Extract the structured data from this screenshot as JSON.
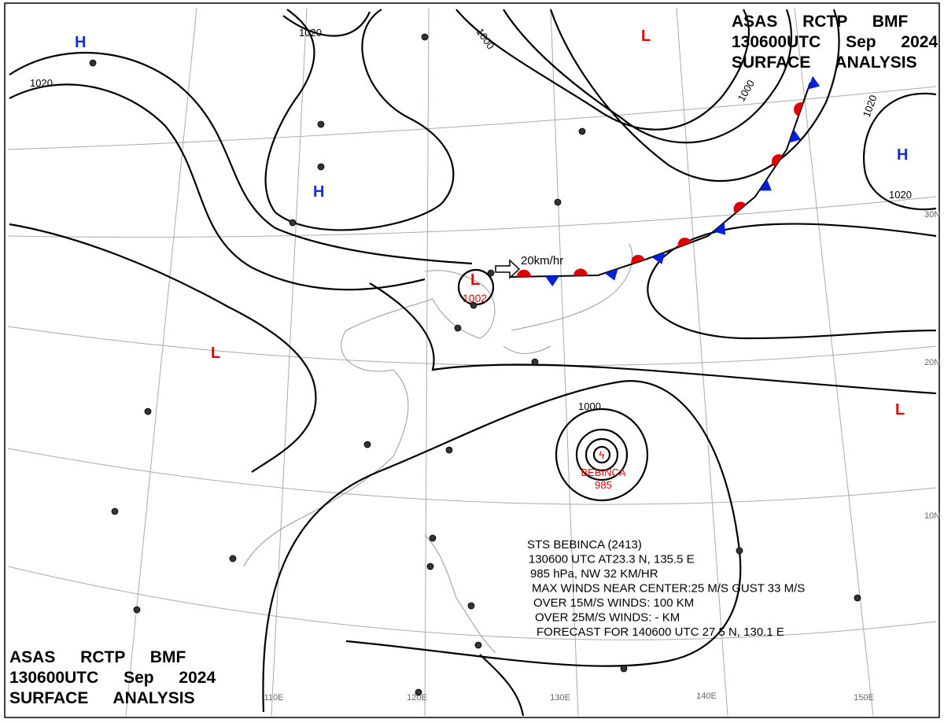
{
  "header": {
    "line1": "ASAS RCTP BMF",
    "line2": "130600UTC Sep 2024",
    "line3": "SURFACE ANALYSIS"
  },
  "isobar_labels": [
    1020,
    1020,
    1000,
    1000,
    1020,
    1020,
    1000
  ],
  "pressure_centers": [
    "H",
    "H",
    "H",
    "L",
    "L",
    "L",
    "L"
  ],
  "low_center_pressure": 1002,
  "front_motion": "20km/hr",
  "typhoon": {
    "name": "BEBINCA",
    "pressure": 985
  },
  "typhoon_info": [
    "STS BEBINCA (2413)",
    "130600 UTC AT23.3 N, 135.5 E",
    "985 hPa, NW 32 KM/HR",
    "MAX WINDS NEAR CENTER:25 M/S GUST 33 M/S",
    "OVER 15M/S WINDS: 100 KM",
    "OVER 25M/S WINDS: - KM",
    "FORECAST FOR 140600 UTC 27.5 N, 130.1 E"
  ],
  "longitudes": [
    "110E",
    "120E",
    "130E",
    "140E",
    "150E"
  ],
  "latitudes": [
    "30N",
    "20N",
    "10N"
  ]
}
